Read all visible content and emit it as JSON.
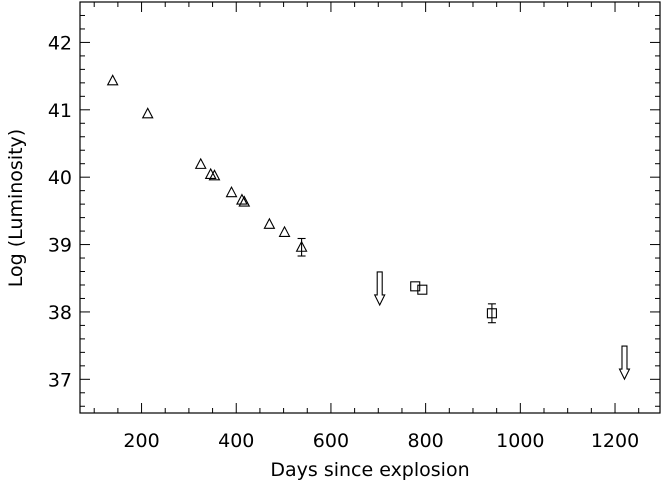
{
  "chart_data": {
    "type": "scatter",
    "xlabel": "Days since explosion",
    "ylabel": "Log (Luminosity)",
    "xlim": [
      70,
      1295
    ],
    "ylim": [
      36.5,
      42.6
    ],
    "xticks_major": [
      200,
      400,
      600,
      800,
      1000,
      1200
    ],
    "xticks_minor_step": 50,
    "yticks_major": [
      37,
      38,
      39,
      40,
      41,
      42
    ],
    "yticks_minor_step": 0.2,
    "grid": false,
    "colors": {
      "axes": "#000000",
      "markers": "#000000",
      "background": "#ffffff"
    },
    "series": [
      {
        "marker": "triangle",
        "points": [
          {
            "x": 139,
            "y": 41.43
          },
          {
            "x": 213,
            "y": 40.94
          },
          {
            "x": 325,
            "y": 40.19
          },
          {
            "x": 346,
            "y": 40.04
          },
          {
            "x": 354,
            "y": 40.02
          },
          {
            "x": 390,
            "y": 39.77
          },
          {
            "x": 412,
            "y": 39.66
          },
          {
            "x": 417,
            "y": 39.63
          },
          {
            "x": 470,
            "y": 39.3
          },
          {
            "x": 502,
            "y": 39.18
          },
          {
            "x": 538,
            "y": 38.96,
            "yerr": 0.13
          }
        ]
      },
      {
        "marker": "square",
        "points": [
          {
            "x": 778,
            "y": 38.38
          },
          {
            "x": 793,
            "y": 38.33
          },
          {
            "x": 940,
            "y": 37.98,
            "yerr": 0.14
          }
        ]
      },
      {
        "marker": "upper-limit-arrow",
        "points": [
          {
            "x": 703,
            "y": 38.4
          },
          {
            "x": 1220,
            "y": 37.3
          }
        ]
      }
    ]
  }
}
